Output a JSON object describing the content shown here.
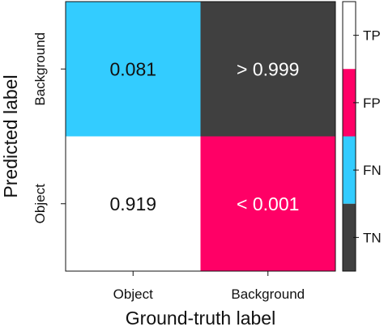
{
  "chart_data": {
    "type": "heatmap",
    "xlabel": "Ground-truth label",
    "ylabel": "Predicted label",
    "x_categories": [
      "Object",
      "Background"
    ],
    "y_categories": [
      "Object",
      "Background"
    ],
    "cells": [
      {
        "x": "Object",
        "y": "Background",
        "label": "0.081",
        "value": 0.081,
        "class": "FN",
        "color": "#33CCFF",
        "text_color": "#111111"
      },
      {
        "x": "Background",
        "y": "Background",
        "label": "> 0.999",
        "value": 0.999,
        "class": "TN",
        "color": "#404040",
        "text_color": "#FFFFFF"
      },
      {
        "x": "Object",
        "y": "Object",
        "label": "0.919",
        "value": 0.919,
        "class": "TP",
        "color": "#FFFFFF",
        "text_color": "#111111"
      },
      {
        "x": "Background",
        "y": "Object",
        "label": "< 0.001",
        "value": 0.001,
        "class": "FP",
        "color": "#FF0066",
        "text_color": "#FFFFFF"
      }
    ],
    "legend": {
      "placement": "right",
      "entries": [
        {
          "label": "TP",
          "color": "#FFFFFF"
        },
        {
          "label": "FP",
          "color": "#FF0066"
        },
        {
          "label": "FN",
          "color": "#33CCFF"
        },
        {
          "label": "TN",
          "color": "#404040"
        }
      ]
    }
  }
}
